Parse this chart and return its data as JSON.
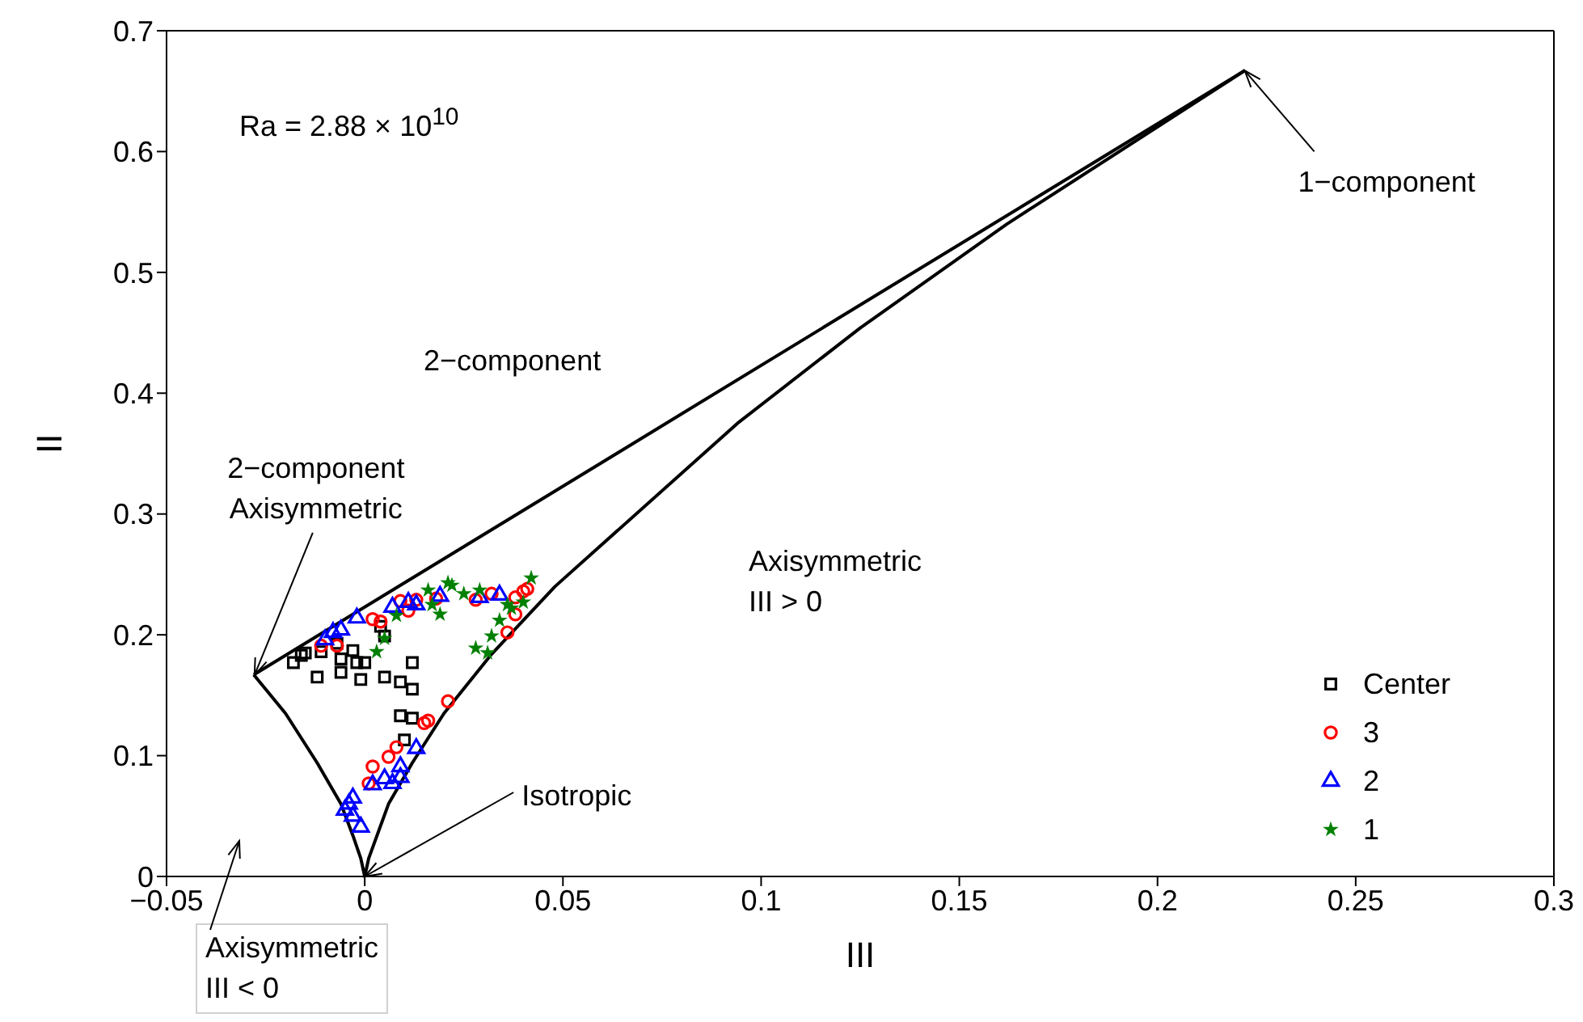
{
  "chart_data": {
    "type": "scatter",
    "xlabel": "III",
    "ylabel": "II",
    "xlim": [
      -0.05,
      0.3
    ],
    "ylim": [
      0,
      0.7
    ],
    "xticks": [
      {
        "value": -0.05,
        "label": "−0.05"
      },
      0,
      0.05,
      0.1,
      0.15,
      0.2,
      0.25,
      0.3
    ],
    "yticks": [
      0,
      0.1,
      0.2,
      0.3,
      0.4,
      0.5,
      0.6,
      0.7
    ],
    "legend": "right",
    "annotations": [
      "Ra = 2.88 × 10$^{10}$",
      {
        "text": "1−component",
        "x": 0.222,
        "y": 0.667
      },
      {
        "text": "2−component\nAxisymmetric",
        "x": -0.0278,
        "y": 0.1667
      },
      {
        "text": "Isotropic",
        "x": 0,
        "y": 0
      },
      "Axisymmetric\nIII < 0",
      "2−component",
      "Axisymmetric\nIII > 0"
    ],
    "series": [
      {
        "type": "line",
        "color": "#000000",
        "marker": "none",
        "x": [
          -0.028,
          -0.02,
          -0.012,
          -0.006,
          -0.003,
          -0.001,
          0
        ],
        "values": [
          0.167,
          0.135,
          0.094,
          0.06,
          0.034,
          0.015,
          0
        ]
      },
      {
        "type": "line",
        "color": "#000000",
        "marker": "none",
        "x": [
          0,
          0.001,
          0.006,
          0.012,
          0.02,
          0.032,
          0.048,
          0.094,
          0.125,
          0.162,
          0.222
        ],
        "values": [
          0,
          0.015,
          0.06,
          0.094,
          0.135,
          0.184,
          0.24,
          0.375,
          0.454,
          0.54,
          0.667
        ]
      },
      {
        "type": "line",
        "color": "#000000",
        "marker": "none",
        "x": [
          -0.028,
          0.222
        ],
        "values": [
          0.167,
          0.667
        ]
      },
      {
        "name": "Center",
        "color": "#000000",
        "marker": "square",
        "x": [
          -0.018,
          -0.016,
          -0.015,
          -0.012,
          -0.011,
          -0.006,
          -0.006,
          -0.003,
          -0.002,
          0.0,
          -0.001,
          0.005,
          0.004,
          0.005,
          0.009,
          0.012,
          0.012,
          0.009,
          0.012,
          0.01,
          -0.007
        ],
        "values": [
          0.177,
          0.183,
          0.185,
          0.165,
          0.186,
          0.18,
          0.169,
          0.187,
          0.177,
          0.177,
          0.163,
          0.165,
          0.207,
          0.199,
          0.161,
          0.177,
          0.155,
          0.133,
          0.131,
          0.113,
          0.193
        ]
      },
      {
        "name": "3",
        "color": "#ff0000",
        "marker": "circle",
        "x": [
          -0.011,
          -0.007,
          0.002,
          0.004,
          0.009,
          0.011,
          0.013,
          0.018,
          0.028,
          0.032,
          0.038,
          0.04,
          0.041,
          0.038,
          0.036,
          0.021,
          0.015,
          0.016,
          0.008,
          0.006,
          0.002,
          0.001
        ],
        "values": [
          0.191,
          0.191,
          0.213,
          0.211,
          0.228,
          0.22,
          0.229,
          0.23,
          0.229,
          0.234,
          0.231,
          0.236,
          0.238,
          0.217,
          0.202,
          0.145,
          0.127,
          0.129,
          0.107,
          0.099,
          0.091,
          0.077
        ]
      },
      {
        "name": "2",
        "color": "#0000ff",
        "marker": "triangle",
        "x": [
          -0.01,
          -0.008,
          -0.006,
          -0.002,
          0.007,
          0.011,
          0.013,
          0.019,
          0.029,
          0.034,
          0.013,
          0.009,
          0.009,
          0.007,
          0.005,
          0.002,
          -0.003,
          -0.004,
          -0.005,
          -0.003,
          -0.001
        ],
        "values": [
          0.196,
          0.202,
          0.204,
          0.214,
          0.223,
          0.227,
          0.225,
          0.232,
          0.231,
          0.233,
          0.106,
          0.091,
          0.082,
          0.077,
          0.081,
          0.076,
          0.065,
          0.06,
          0.055,
          0.05,
          0.041
        ]
      },
      {
        "name": "1",
        "color": "#008000",
        "marker": "star",
        "x": [
          0.003,
          0.005,
          0.008,
          0.016,
          0.019,
          0.021,
          0.022,
          0.025,
          0.029,
          0.036,
          0.037,
          0.034,
          0.032,
          0.028,
          0.031,
          0.042,
          0.04,
          0.017
        ],
        "values": [
          0.186,
          0.197,
          0.216,
          0.237,
          0.217,
          0.243,
          0.241,
          0.234,
          0.237,
          0.225,
          0.222,
          0.212,
          0.199,
          0.189,
          0.185,
          0.247,
          0.227,
          0.225
        ]
      }
    ]
  }
}
